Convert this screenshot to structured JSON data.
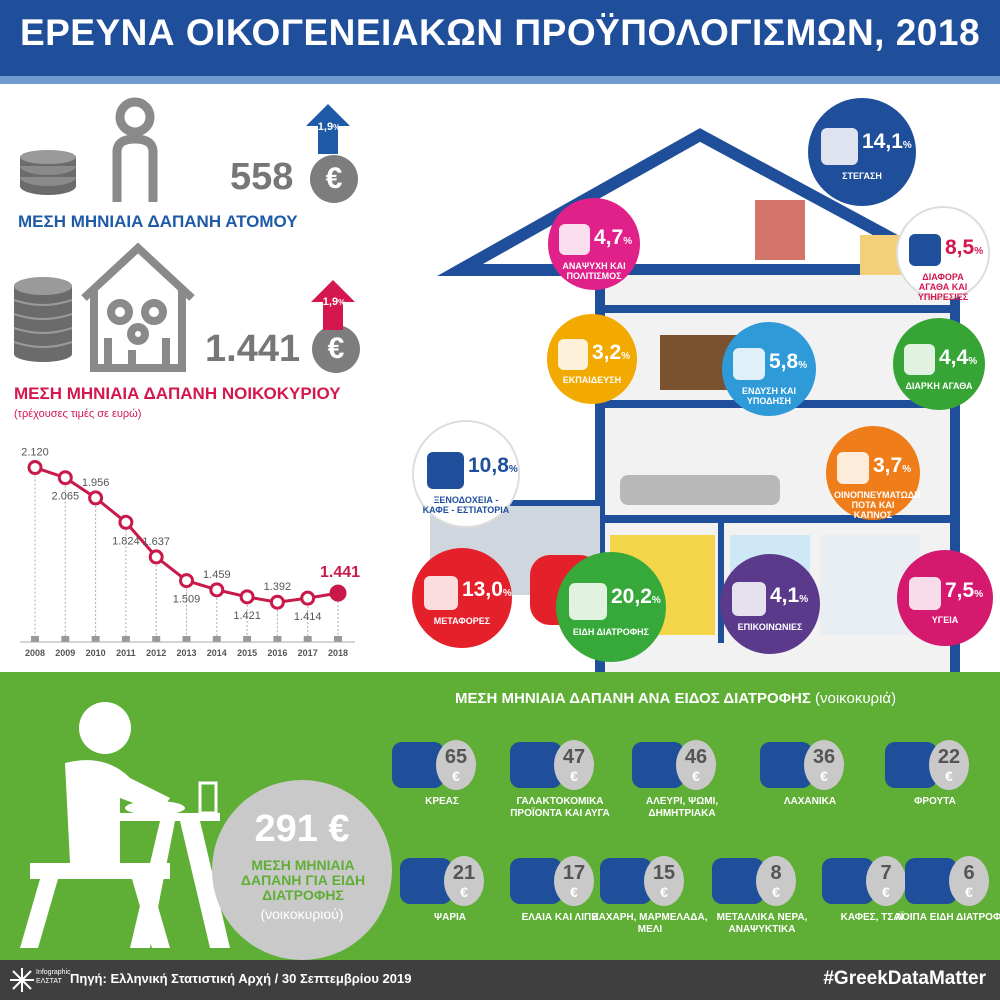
{
  "header": {
    "title": "ΕΡΕΥΝΑ ΟΙΚΟΓΕΝΕΙΑΚΩΝ ΠΡΟΫΠΟΛΟΓΙΣΜΩΝ, 2018"
  },
  "person": {
    "value": "558",
    "currency": "€",
    "change": "1,9",
    "change_unit": "%",
    "label": "ΜΕΣΗ ΜΗΝΙΑΙΑ ΔΑΠΑΝΗ ΑΤΟΜΟΥ",
    "change_color": "#1f5aa8"
  },
  "household": {
    "value": "1.441",
    "currency": "€",
    "change": "1,9",
    "change_unit": "%",
    "label": "ΜΕΣΗ ΜΗΝΙΑΙΑ ΔΑΠΑΝΗ ΝΟΙΚΟΚΥΡΙΟΥ",
    "note": "(τρέχουσες τιμές σε ευρώ)",
    "change_color": "#d4174f"
  },
  "chart_data": {
    "type": "line",
    "x": [
      "2008",
      "2009",
      "2010",
      "2011",
      "2012",
      "2013",
      "2014",
      "2015",
      "2016",
      "2017",
      "2018"
    ],
    "values": [
      2120,
      2065,
      1956,
      1824,
      1637,
      1509,
      1459,
      1421,
      1392,
      1414,
      1441
    ],
    "value_labels": [
      "2.120",
      "2.065",
      "1.956",
      "1.824",
      "1.637",
      "1.509",
      "1.459",
      "1.421",
      "1.392",
      "1.414",
      "1.441"
    ],
    "color": "#c8194a",
    "highlight": "2018"
  },
  "categories": [
    {
      "id": "housing",
      "pct": "14,1",
      "unit": "%",
      "name": "ΣΤΕΓΑΣΗ",
      "color": "#1f4e9a",
      "icon": "house-icon"
    },
    {
      "id": "recreation",
      "pct": "4,7",
      "unit": "%",
      "name": "ΑΝΑΨΥΧΗ ΚΑΙ ΠΟΛΙΤΙΣΜΟΣ",
      "color": "#e0218a",
      "icon": "theater-masks-icon"
    },
    {
      "id": "misc",
      "pct": "8,5",
      "unit": "%",
      "name": "ΔΙΑΦΟΡΑ ΑΓΑΘΑ ΚΑΙ ΥΠΗΡΕΣΙΕΣ",
      "color": "#fff",
      "icon": "triangle-icon"
    },
    {
      "id": "education",
      "pct": "3,2",
      "unit": "%",
      "name": "ΕΚΠΑΙΔΕΥΣΗ",
      "color": "#f2a900",
      "icon": "graduation-cap-icon"
    },
    {
      "id": "clothing",
      "pct": "5,8",
      "unit": "%",
      "name": "ΕΝΔΥΣΗ ΚΑΙ ΥΠΟΔΗΣΗ",
      "color": "#2e9ad8",
      "icon": "shirt-icon"
    },
    {
      "id": "durables",
      "pct": "4,4",
      "unit": "%",
      "name": "ΔΙΑΡΚΗ ΑΓΑΘΑ",
      "color": "#36a535",
      "icon": "hand-house-icon"
    },
    {
      "id": "hotels",
      "pct": "10,8",
      "unit": "%",
      "name": "ΞΕΝΟΔΟΧΕΙΑ - ΚΑΦΕ - ΕΣΤΙΑΤΟΡΙΑ",
      "color": "#fff",
      "icon": "hotel-icon"
    },
    {
      "id": "alcohol",
      "pct": "3,7",
      "unit": "%",
      "name": "ΟΙΝΟΠΝΕΥΜΑΤΩΔΗ ΠΟΤΑ ΚΑΙ ΚΑΠΝΟΣ",
      "color": "#ef7d1a",
      "icon": "wine-glass-icon"
    },
    {
      "id": "transport",
      "pct": "13,0",
      "unit": "%",
      "name": "ΜΕΤΑΦΟΡΕΣ",
      "color": "#e4202a",
      "icon": "truck-icon"
    },
    {
      "id": "food",
      "pct": "20,2",
      "unit": "%",
      "name": "ΕΙΔΗ ΔΙΑΤΡΟΦΗΣ",
      "color": "#37a83a",
      "icon": "food-icon"
    },
    {
      "id": "communications",
      "pct": "4,1",
      "unit": "%",
      "name": "ΕΠΙΚΟΙΝΩΝΙΕΣ",
      "color": "#5b3a8c",
      "icon": "phone-envelope-icon"
    },
    {
      "id": "health",
      "pct": "7,5",
      "unit": "%",
      "name": "ΥΓΕΙΑ",
      "color": "#d4196f",
      "icon": "heartbeat-icon"
    }
  ],
  "food": {
    "title": "ΜΕΣΗ ΜΗΝΙΑΙΑ  ΔΑΠΑΝΗ  ΑΝΑ ΕΙΔΟΣ ΔΙΑΤΡΟΦΗΣ",
    "title_note": "(νοικοκυριά)",
    "total": {
      "value": "291 €",
      "label": "ΜΕΣΗ ΜΗΝΙΑΙΑ ΔΑΠΑΝΗ  ΓΙΑ ΕΙΔΗ ΔΙΑΤΡΟΦΗΣ",
      "note": "(νοικοκυριού)"
    },
    "items": [
      {
        "value": "65",
        "name": "ΚΡΕΑΣ",
        "icon": "meat-icon"
      },
      {
        "value": "47",
        "name": "ΓΑΛΑΚΤΟΚΟΜΙΚΑ ΠΡΟΪΟΝΤΑ ΚΑΙ ΑΥΓΑ",
        "icon": "dairy-icon"
      },
      {
        "value": "46",
        "name": "ΑΛΕΥΡΙ, ΨΩΜΙ, ΔΗΜΗΤΡΙΑΚΑ",
        "icon": "bread-icon"
      },
      {
        "value": "36",
        "name": "ΛΑΧΑΝΙΚΑ",
        "icon": "vegetables-icon"
      },
      {
        "value": "22",
        "name": "ΦΡΟΥΤΑ",
        "icon": "fruit-icon"
      },
      {
        "value": "21",
        "name": "ΨΑΡΙΑ",
        "icon": "fish-icon"
      },
      {
        "value": "17",
        "name": "ΕΛΑΙΑ ΚΑΙ ΛΙΠΗ",
        "icon": "oil-icon"
      },
      {
        "value": "15",
        "name": "ΖΑΧΑΡΗ, ΜΑΡΜΕΛΑΔΑ, ΜΕΛΙ",
        "icon": "sugar-icon"
      },
      {
        "value": "8",
        "name": "ΜΕΤΑΛΛΙΚΑ ΝΕΡΑ, ΑΝΑΨΥΚΤΙΚΑ",
        "icon": "soft-drink-icon"
      },
      {
        "value": "7",
        "name": "ΚΑΦΕΣ, ΤΣΑΪ",
        "icon": "coffee-icon"
      },
      {
        "value": "6",
        "name": "ΛΟΙΠΑ ΕΙΔΗ ΔΙΑΤΡΟΦΗΣ",
        "icon": "other-food-icon"
      }
    ],
    "currency": "€"
  },
  "footer": {
    "logo": "Infographic ΕΛΣΤΑΤ",
    "source": "Πηγή: Ελληνική Στατιστική Αρχή  / 30 Σεπτεμβρίου 2019",
    "hashtag": "#GreekDataMatter"
  }
}
